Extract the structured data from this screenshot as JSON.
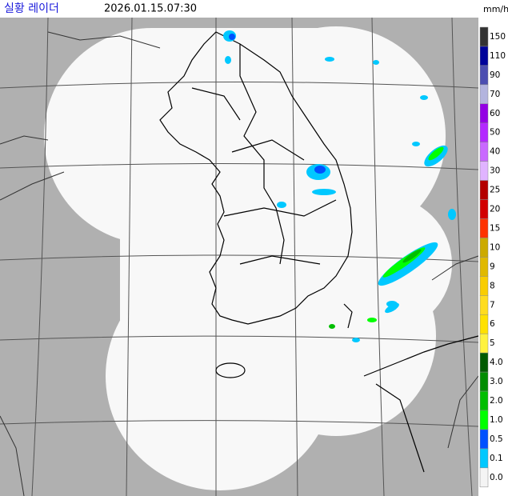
{
  "header": {
    "title": "실황 레이더",
    "timestamp": "2026.01.15.07:30",
    "unit": "mm/h"
  },
  "legend": [
    {
      "label": "150",
      "color": "#333333"
    },
    {
      "label": "110",
      "color": "#00039a"
    },
    {
      "label": "90",
      "color": "#4c4eb1"
    },
    {
      "label": "70",
      "color": "#b3b4de"
    },
    {
      "label": "60",
      "color": "#9300e4"
    },
    {
      "label": "50",
      "color": "#b329ff"
    },
    {
      "label": "40",
      "color": "#c969ff"
    },
    {
      "label": "30",
      "color": "#e0b4ff"
    },
    {
      "label": "25",
      "color": "#b40000"
    },
    {
      "label": "20",
      "color": "#d20000"
    },
    {
      "label": "15",
      "color": "#ff3200"
    },
    {
      "label": "10",
      "color": "#ccaa00"
    },
    {
      "label": "9",
      "color": "#e0b900"
    },
    {
      "label": "8",
      "color": "#f9cd00"
    },
    {
      "label": "7",
      "color": "#ffdc1f"
    },
    {
      "label": "6",
      "color": "#ffe100"
    },
    {
      "label": "5",
      "color": "#fff23f"
    },
    {
      "label": "4.0",
      "color": "#005a00"
    },
    {
      "label": "3.0",
      "color": "#008c00"
    },
    {
      "label": "2.0",
      "color": "#00be00"
    },
    {
      "label": "1.0",
      "color": "#00ff00"
    },
    {
      "label": "0.5",
      "color": "#0050ff"
    },
    {
      "label": "0.1",
      "color": "#00c8ff"
    },
    {
      "label": "0.0",
      "color": "#f4f4f4"
    }
  ]
}
